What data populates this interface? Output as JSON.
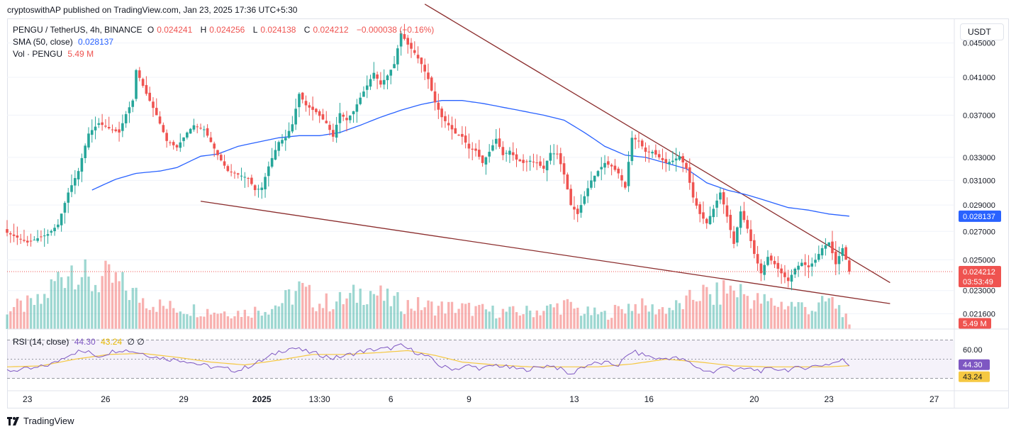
{
  "header": {
    "published_line": "cryptoswithAP published on TradingView.com, Jan 23, 2025 17:36 UTC+5:30"
  },
  "legend": {
    "symbol": "PENGU / TetherUS, 4h, BINANCE",
    "open_label": "O",
    "open": "0.024241",
    "high_label": "H",
    "high": "0.024256",
    "low_label": "L",
    "low": "0.024138",
    "close_label": "C",
    "close": "0.024212",
    "change": "−0.000038 (−0.16%)",
    "sma_label": "SMA (50, close)",
    "sma_value": "0.028137",
    "vol_label": "Vol · PENGU",
    "vol_value": "5.49 M",
    "rsi_label": "RSI (14, close)",
    "rsi_value": "44.30",
    "rsi_ma_value": "43.24",
    "rsi_extra": "∅  ∅"
  },
  "currency_button": "USDT",
  "branding": "TradingView",
  "colors": {
    "up": "#26a69a",
    "down": "#ef5350",
    "sma": "#2962ff",
    "trendline": "#8b2d2d",
    "rsi": "#7e57c2",
    "rsi_ma": "#f5c842"
  },
  "chart_data": {
    "type": "candlestick",
    "symbol": "PENGU/USDT",
    "timeframe": "4h",
    "exchange": "BINANCE",
    "y_scale": "log",
    "ylim": [
      0.0208,
      0.048
    ],
    "price_ticks": [
      "0.045000",
      "0.041000",
      "0.037000",
      "0.033000",
      "0.031000",
      "0.029000",
      "0.027000",
      "0.025000",
      "0.023000",
      "0.021600"
    ],
    "x_ticks": [
      "23",
      "26",
      "29",
      "2025",
      "13:30",
      "6",
      "9",
      "13",
      "16",
      "20",
      "23",
      "27"
    ],
    "current_price_label": "0.024212",
    "countdown_label": "03:53:49",
    "sma_price_label": "0.028137",
    "volume_label": "5.49 M",
    "rsi_ticks": [
      "60.00"
    ],
    "rsi_value_label": "44.30",
    "rsi_ma_label": "43.24",
    "price_anchors": [
      [
        0,
        0.0269
      ],
      [
        6,
        0.0262
      ],
      [
        12,
        0.0268
      ],
      [
        15,
        0.0275
      ],
      [
        18,
        0.03
      ],
      [
        21,
        0.0318
      ],
      [
        24,
        0.0352
      ],
      [
        27,
        0.0362
      ],
      [
        30,
        0.0357
      ],
      [
        33,
        0.0353
      ],
      [
        35,
        0.0371
      ],
      [
        37,
        0.0385
      ],
      [
        38,
        0.0418
      ],
      [
        41,
        0.0392
      ],
      [
        44,
        0.037
      ],
      [
        47,
        0.0345
      ],
      [
        50,
        0.0339
      ],
      [
        53,
        0.0353
      ],
      [
        55,
        0.036
      ],
      [
        58,
        0.0356
      ],
      [
        60,
        0.0344
      ],
      [
        62,
        0.0332
      ],
      [
        65,
        0.0318
      ],
      [
        68,
        0.0315
      ],
      [
        71,
        0.0312
      ],
      [
        73,
        0.0302
      ],
      [
        75,
        0.0304
      ],
      [
        77,
        0.0322
      ],
      [
        80,
        0.0344
      ],
      [
        82,
        0.0348
      ],
      [
        84,
        0.0361
      ],
      [
        86,
        0.0392
      ],
      [
        88,
        0.038
      ],
      [
        91,
        0.0373
      ],
      [
        94,
        0.0362
      ],
      [
        96,
        0.0349
      ],
      [
        98,
        0.0372
      ],
      [
        100,
        0.0365
      ],
      [
        102,
        0.0374
      ],
      [
        104,
        0.0388
      ],
      [
        106,
        0.0401
      ],
      [
        108,
        0.0415
      ],
      [
        110,
        0.0402
      ],
      [
        112,
        0.0412
      ],
      [
        114,
        0.0425
      ],
      [
        116,
        0.0462
      ],
      [
        118,
        0.0448
      ],
      [
        120,
        0.0438
      ],
      [
        122,
        0.0425
      ],
      [
        124,
        0.0408
      ],
      [
        126,
        0.0383
      ],
      [
        128,
        0.0368
      ],
      [
        130,
        0.036
      ],
      [
        132,
        0.0352
      ],
      [
        134,
        0.0349
      ],
      [
        136,
        0.0338
      ],
      [
        138,
        0.0336
      ],
      [
        140,
        0.0325
      ],
      [
        142,
        0.0335
      ],
      [
        144,
        0.0347
      ],
      [
        146,
        0.0332
      ],
      [
        148,
        0.0336
      ],
      [
        150,
        0.0328
      ],
      [
        152,
        0.0325
      ],
      [
        154,
        0.0327
      ],
      [
        156,
        0.0325
      ],
      [
        158,
        0.032
      ],
      [
        160,
        0.0334
      ],
      [
        162,
        0.0333
      ],
      [
        164,
        0.0315
      ],
      [
        166,
        0.029
      ],
      [
        168,
        0.0283
      ],
      [
        170,
        0.0297
      ],
      [
        172,
        0.031
      ],
      [
        174,
        0.0318
      ],
      [
        176,
        0.0325
      ],
      [
        178,
        0.0322
      ],
      [
        180,
        0.0316
      ],
      [
        182,
        0.0304
      ],
      [
        184,
        0.0348
      ],
      [
        186,
        0.0345
      ],
      [
        188,
        0.0335
      ],
      [
        190,
        0.0335
      ],
      [
        192,
        0.033
      ],
      [
        194,
        0.0325
      ],
      [
        196,
        0.0327
      ],
      [
        198,
        0.0331
      ],
      [
        200,
        0.032
      ],
      [
        202,
        0.0296
      ],
      [
        204,
        0.0283
      ],
      [
        206,
        0.0276
      ],
      [
        208,
        0.0287
      ],
      [
        210,
        0.03
      ],
      [
        212,
        0.0281
      ],
      [
        214,
        0.0261
      ],
      [
        216,
        0.0285
      ],
      [
        218,
        0.0272
      ],
      [
        220,
        0.0254
      ],
      [
        222,
        0.0241
      ],
      [
        224,
        0.0252
      ],
      [
        226,
        0.0247
      ],
      [
        228,
        0.0241
      ],
      [
        230,
        0.0236
      ],
      [
        232,
        0.0244
      ],
      [
        234,
        0.0248
      ],
      [
        236,
        0.0245
      ],
      [
        238,
        0.025
      ],
      [
        240,
        0.0258
      ],
      [
        242,
        0.0262
      ],
      [
        244,
        0.0247
      ],
      [
        246,
        0.0258
      ],
      [
        248,
        0.02421
      ]
    ],
    "sma_anchors": [
      [
        25,
        0.0302
      ],
      [
        32,
        0.0311
      ],
      [
        38,
        0.0316
      ],
      [
        45,
        0.0318
      ],
      [
        50,
        0.0321
      ],
      [
        57,
        0.0331
      ],
      [
        62,
        0.0333
      ],
      [
        68,
        0.034
      ],
      [
        74,
        0.0344
      ],
      [
        80,
        0.0348
      ],
      [
        86,
        0.035
      ],
      [
        92,
        0.035
      ],
      [
        98,
        0.0353
      ],
      [
        104,
        0.036
      ],
      [
        110,
        0.0368
      ],
      [
        116,
        0.0375
      ],
      [
        122,
        0.0381
      ],
      [
        128,
        0.0385
      ],
      [
        134,
        0.0385
      ],
      [
        140,
        0.0382
      ],
      [
        146,
        0.0378
      ],
      [
        152,
        0.0374
      ],
      [
        158,
        0.037
      ],
      [
        164,
        0.0365
      ],
      [
        170,
        0.0353
      ],
      [
        176,
        0.034
      ],
      [
        182,
        0.0332
      ],
      [
        188,
        0.033
      ],
      [
        194,
        0.0325
      ],
      [
        200,
        0.032
      ],
      [
        206,
        0.0308
      ],
      [
        212,
        0.0302
      ],
      [
        218,
        0.0298
      ],
      [
        224,
        0.0293
      ],
      [
        230,
        0.0288
      ],
      [
        236,
        0.0286
      ],
      [
        242,
        0.0283
      ],
      [
        248,
        0.02814
      ]
    ],
    "trendlines": [
      {
        "from": [
          123,
          0.05
        ],
        "to": [
          260,
          0.0235
        ]
      },
      {
        "from": [
          57,
          0.0293
        ],
        "to": [
          260,
          0.0222
        ]
      }
    ],
    "rsi_anchors": [
      [
        0,
        38
      ],
      [
        8,
        40
      ],
      [
        14,
        46
      ],
      [
        18,
        55
      ],
      [
        21,
        58
      ],
      [
        24,
        57
      ],
      [
        27,
        53
      ],
      [
        30,
        57
      ],
      [
        33,
        60
      ],
      [
        36,
        59
      ],
      [
        40,
        56
      ],
      [
        44,
        52
      ],
      [
        48,
        50
      ],
      [
        52,
        49
      ],
      [
        56,
        45
      ],
      [
        60,
        42
      ],
      [
        64,
        40
      ],
      [
        68,
        38
      ],
      [
        72,
        44
      ],
      [
        76,
        50
      ],
      [
        80,
        58
      ],
      [
        84,
        62
      ],
      [
        88,
        58
      ],
      [
        92,
        55
      ],
      [
        96,
        51
      ],
      [
        100,
        54
      ],
      [
        104,
        58
      ],
      [
        108,
        60
      ],
      [
        112,
        61
      ],
      [
        116,
        64
      ],
      [
        120,
        58
      ],
      [
        124,
        52
      ],
      [
        128,
        42
      ],
      [
        132,
        40
      ],
      [
        136,
        43
      ],
      [
        140,
        40
      ],
      [
        144,
        44
      ],
      [
        148,
        41
      ],
      [
        152,
        39
      ],
      [
        156,
        41
      ],
      [
        160,
        44
      ],
      [
        164,
        38
      ],
      [
        166,
        33
      ],
      [
        168,
        40
      ],
      [
        172,
        45
      ],
      [
        176,
        46
      ],
      [
        180,
        44
      ],
      [
        184,
        58
      ],
      [
        188,
        54
      ],
      [
        192,
        50
      ],
      [
        196,
        52
      ],
      [
        200,
        48
      ],
      [
        204,
        40
      ],
      [
        208,
        36
      ],
      [
        212,
        44
      ],
      [
        214,
        38
      ],
      [
        218,
        40
      ],
      [
        222,
        38
      ],
      [
        226,
        40
      ],
      [
        230,
        39
      ],
      [
        234,
        41
      ],
      [
        238,
        43
      ],
      [
        242,
        45
      ],
      [
        246,
        49
      ],
      [
        248,
        44.3
      ]
    ],
    "rsi_ma_anchors": [
      [
        0,
        42
      ],
      [
        10,
        43
      ],
      [
        20,
        50
      ],
      [
        30,
        55
      ],
      [
        40,
        56
      ],
      [
        50,
        52
      ],
      [
        60,
        47
      ],
      [
        70,
        44
      ],
      [
        80,
        49
      ],
      [
        90,
        55
      ],
      [
        100,
        55
      ],
      [
        110,
        57
      ],
      [
        118,
        59
      ],
      [
        126,
        54
      ],
      [
        134,
        47
      ],
      [
        144,
        44
      ],
      [
        154,
        42
      ],
      [
        164,
        42
      ],
      [
        174,
        42
      ],
      [
        184,
        45
      ],
      [
        194,
        50
      ],
      [
        204,
        47
      ],
      [
        214,
        43
      ],
      [
        224,
        42
      ],
      [
        234,
        42
      ],
      [
        242,
        42
      ],
      [
        248,
        43.24
      ]
    ],
    "volume_anchors": [
      [
        0,
        1.8
      ],
      [
        10,
        2.4
      ],
      [
        16,
        5.0
      ],
      [
        20,
        6.0
      ],
      [
        24,
        4.0
      ],
      [
        28,
        4.5
      ],
      [
        32,
        4.2
      ],
      [
        38,
        3.0
      ],
      [
        46,
        2.0
      ],
      [
        54,
        1.8
      ],
      [
        62,
        1.6
      ],
      [
        70,
        1.5
      ],
      [
        78,
        2.0
      ],
      [
        82,
        2.6
      ],
      [
        86,
        3.6
      ],
      [
        92,
        2.3
      ],
      [
        100,
        2.6
      ],
      [
        106,
        3.6
      ],
      [
        112,
        2.6
      ],
      [
        118,
        2.2
      ],
      [
        126,
        2.0
      ],
      [
        134,
        1.9
      ],
      [
        142,
        1.6
      ],
      [
        150,
        1.5
      ],
      [
        158,
        1.7
      ],
      [
        164,
        2.2
      ],
      [
        170,
        1.5
      ],
      [
        176,
        1.3
      ],
      [
        184,
        2.2
      ],
      [
        190,
        1.8
      ],
      [
        196,
        1.9
      ],
      [
        200,
        2.3
      ],
      [
        204,
        3.3
      ],
      [
        208,
        2.8
      ],
      [
        212,
        3.6
      ],
      [
        216,
        3.4
      ],
      [
        220,
        2.6
      ],
      [
        226,
        2.3
      ],
      [
        232,
        2.2
      ],
      [
        238,
        1.8
      ],
      [
        242,
        2.6
      ],
      [
        246,
        1.7
      ],
      [
        248,
        0.3
      ]
    ]
  }
}
